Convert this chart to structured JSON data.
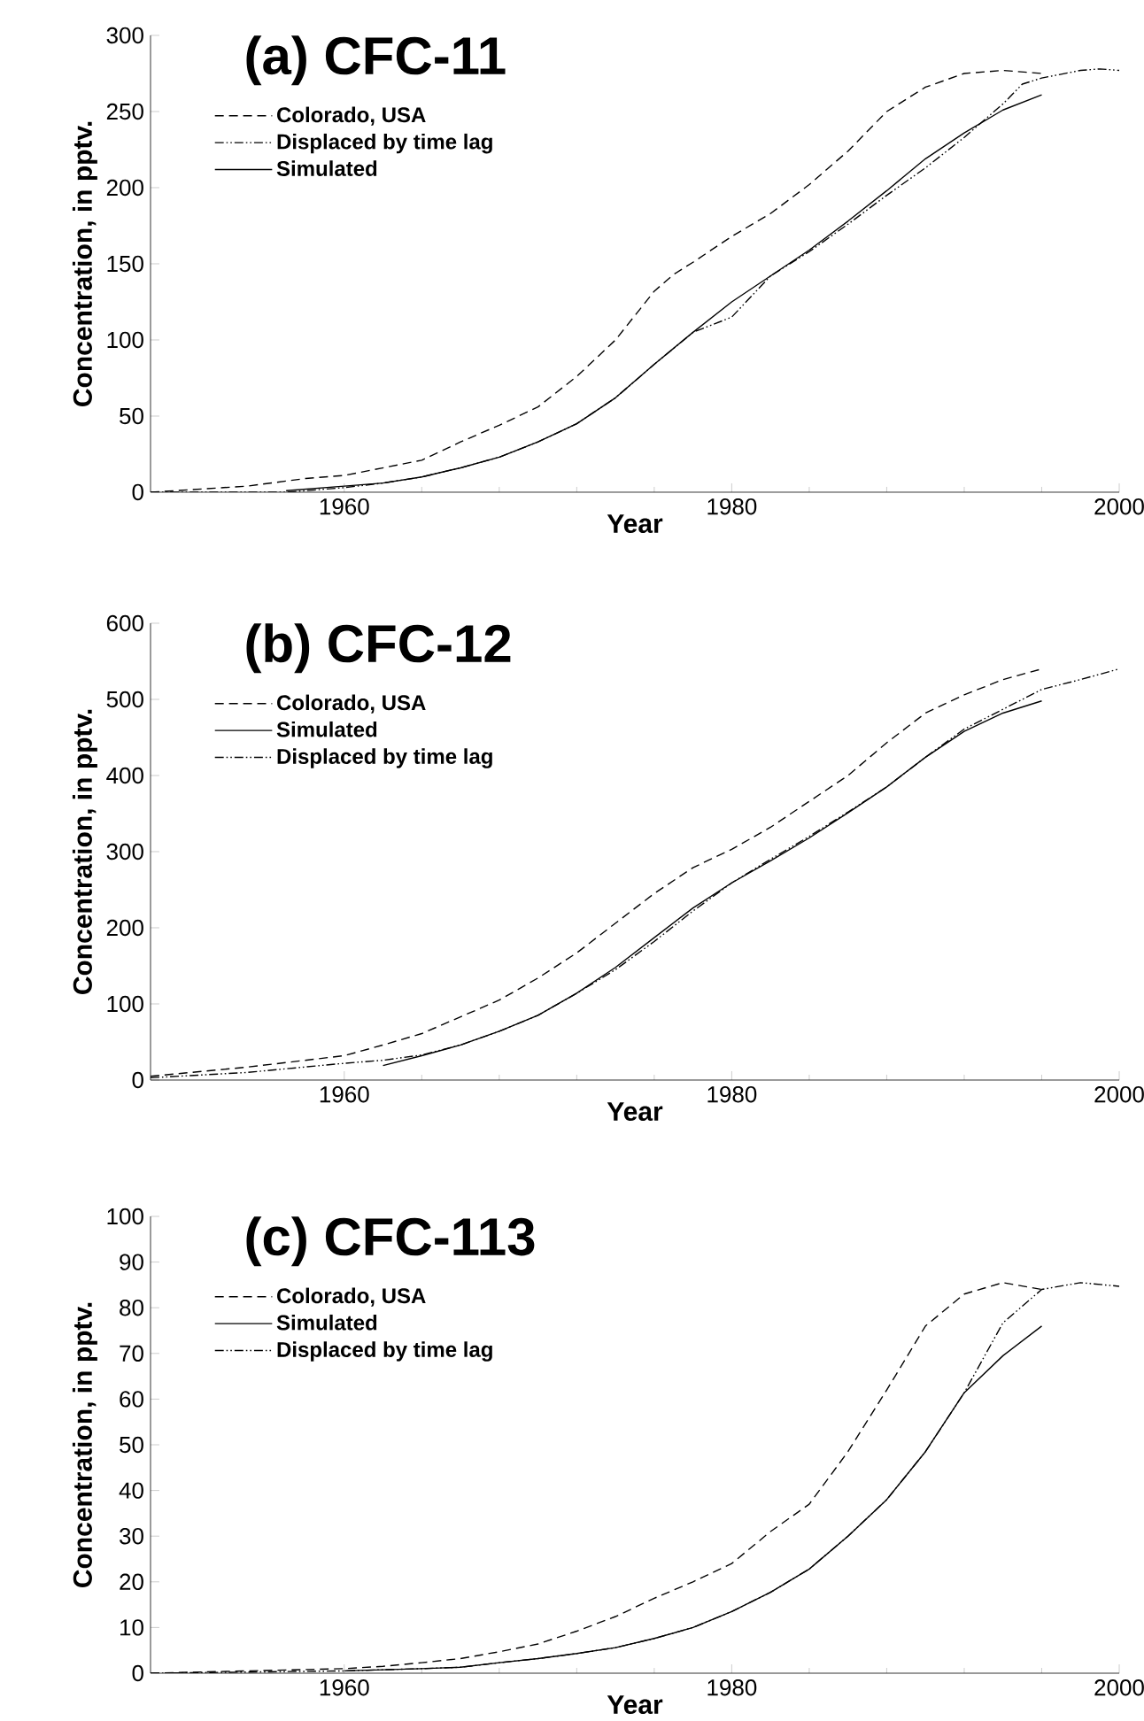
{
  "chart_data": [
    {
      "type": "line",
      "title": "(a) CFC-11",
      "xlabel": "Year",
      "ylabel": "Concentration, in pptv.",
      "xlim": [
        1950,
        2000
      ],
      "xticks": [
        1960,
        1980,
        2000
      ],
      "ylim": [
        0,
        300
      ],
      "yticks": [
        0,
        50,
        100,
        150,
        200,
        250,
        300
      ],
      "legend": "top left",
      "grid": false,
      "series": [
        {
          "name": "Colorado, USA",
          "color": "#000000",
          "line_style": "dashed",
          "x": [
            1950,
            1955,
            1958,
            1960,
            1962,
            1964,
            1966,
            1968,
            1970,
            1972,
            1974,
            1976,
            1977,
            1978,
            1980,
            1982,
            1984,
            1986,
            1988,
            1990,
            1992,
            1994,
            1996
          ],
          "values": [
            0,
            4,
            9,
            11,
            16,
            21,
            33,
            44,
            56,
            76,
            100,
            132,
            143,
            151,
            168,
            183,
            202,
            224,
            250,
            266,
            275,
            277,
            275
          ]
        },
        {
          "name": "Displaced by time lag",
          "color": "#000000",
          "line_style": "dashdotdotted",
          "x": [
            1950,
            1957,
            1960,
            1962,
            1964,
            1966,
            1968,
            1970,
            1972,
            1974,
            1976,
            1978,
            1980,
            1982,
            1984,
            1986,
            1988,
            1990,
            1992,
            1994,
            1995,
            1996,
            1998,
            1999,
            2000
          ],
          "values": [
            0,
            0,
            3,
            6,
            10,
            16,
            23,
            33,
            45,
            62,
            84,
            105,
            115,
            142,
            158,
            176,
            195,
            213,
            233,
            255,
            268,
            272,
            277,
            278,
            277
          ]
        },
        {
          "name": "Simulated",
          "color": "#000000",
          "line_style": "solid",
          "x": [
            1957,
            1960,
            1962,
            1964,
            1966,
            1968,
            1970,
            1972,
            1974,
            1976,
            1978,
            1980,
            1982,
            1984,
            1986,
            1988,
            1990,
            1992,
            1994,
            1996
          ],
          "values": [
            1,
            4,
            6,
            10,
            16,
            23,
            33,
            45,
            62,
            84,
            105,
            125,
            142,
            159,
            178,
            198,
            219,
            236,
            251,
            261
          ]
        }
      ]
    },
    {
      "type": "line",
      "title": "(b) CFC-12",
      "xlabel": "Year",
      "ylabel": "Concentration, in pptv.",
      "xlim": [
        1950,
        2000
      ],
      "xticks": [
        1960,
        1980,
        2000
      ],
      "ylim": [
        0,
        600
      ],
      "yticks": [
        0,
        100,
        200,
        300,
        400,
        500,
        600
      ],
      "legend": "top left",
      "grid": false,
      "series": [
        {
          "name": "Colorado, USA",
          "color": "#000000",
          "line_style": "dashed",
          "x": [
            1950,
            1955,
            1960,
            1962,
            1964,
            1966,
            1968,
            1970,
            1972,
            1974,
            1976,
            1978,
            1980,
            1982,
            1984,
            1986,
            1988,
            1990,
            1992,
            1994,
            1996
          ],
          "values": [
            5,
            17,
            32,
            46,
            61,
            83,
            105,
            134,
            167,
            206,
            245,
            279,
            303,
            332,
            366,
            400,
            443,
            482,
            506,
            526,
            540
          ]
        },
        {
          "name": "Simulated",
          "color": "#000000",
          "line_style": "solid",
          "x": [
            1962,
            1964,
            1966,
            1968,
            1970,
            1972,
            1974,
            1976,
            1978,
            1980,
            1982,
            1984,
            1986,
            1988,
            1990,
            1992,
            1994,
            1996
          ],
          "values": [
            19,
            32,
            46,
            64,
            85,
            114,
            148,
            187,
            226,
            259,
            288,
            318,
            351,
            385,
            424,
            458,
            482,
            498
          ]
        },
        {
          "name": "Displaced by time lag",
          "color": "#000000",
          "line_style": "dashdotdotted",
          "x": [
            1950,
            1955,
            1960,
            1962,
            1964,
            1966,
            1968,
            1970,
            1972,
            1974,
            1976,
            1978,
            1980,
            1982,
            1984,
            1986,
            1988,
            1990,
            1992,
            1994,
            1996,
            1998,
            2000
          ],
          "values": [
            3,
            10,
            22,
            26,
            33,
            46,
            64,
            85,
            114,
            145,
            182,
            222,
            259,
            290,
            320,
            352,
            385,
            424,
            461,
            487,
            513,
            526,
            540
          ]
        }
      ]
    },
    {
      "type": "line",
      "title": "(c) CFC-113",
      "xlabel": "Year",
      "ylabel": "Concentration, in pptv.",
      "xlim": [
        1950,
        2000
      ],
      "xticks": [
        1960,
        1980,
        2000
      ],
      "ylim": [
        0,
        100
      ],
      "yticks": [
        0,
        10,
        20,
        30,
        40,
        50,
        60,
        70,
        80,
        90,
        100
      ],
      "legend": "top left",
      "grid": false,
      "series": [
        {
          "name": "Colorado, USA",
          "color": "#000000",
          "line_style": "dashed",
          "x": [
            1950,
            1960,
            1962,
            1964,
            1966,
            1968,
            1970,
            1972,
            1974,
            1976,
            1978,
            1980,
            1982,
            1984,
            1986,
            1988,
            1990,
            1992,
            1994,
            1996
          ],
          "values": [
            0,
            1,
            1.5,
            2.3,
            3.2,
            4.7,
            6.4,
            9.2,
            12.4,
            16.4,
            20,
            24,
            31,
            37,
            48.5,
            62,
            76,
            83,
            85.5,
            84
          ]
        },
        {
          "name": "Simulated",
          "color": "#000000",
          "line_style": "solid",
          "x": [
            1960,
            1964,
            1966,
            1968,
            1970,
            1972,
            1974,
            1976,
            1978,
            1980,
            1982,
            1984,
            1986,
            1988,
            1990,
            1992,
            1994,
            1996
          ],
          "values": [
            0.5,
            1,
            1.3,
            2.3,
            3.2,
            4.3,
            5.6,
            7.6,
            10,
            13.5,
            17.7,
            22.8,
            30,
            38,
            48.5,
            61.4,
            69.5,
            76
          ]
        },
        {
          "name": "Displaced by time lag",
          "color": "#000000",
          "line_style": "dashdotdotted",
          "x": [
            1950,
            1960,
            1964,
            1966,
            1968,
            1970,
            1972,
            1974,
            1976,
            1978,
            1980,
            1982,
            1984,
            1986,
            1988,
            1990,
            1992,
            1994,
            1996,
            1998,
            2000
          ],
          "values": [
            0,
            0.5,
            1,
            1.3,
            2.3,
            3.2,
            4.3,
            5.6,
            7.6,
            10,
            13.5,
            17.7,
            22.8,
            30,
            38,
            48.5,
            61.4,
            76.7,
            84,
            85.5,
            84.7
          ]
        }
      ]
    }
  ]
}
